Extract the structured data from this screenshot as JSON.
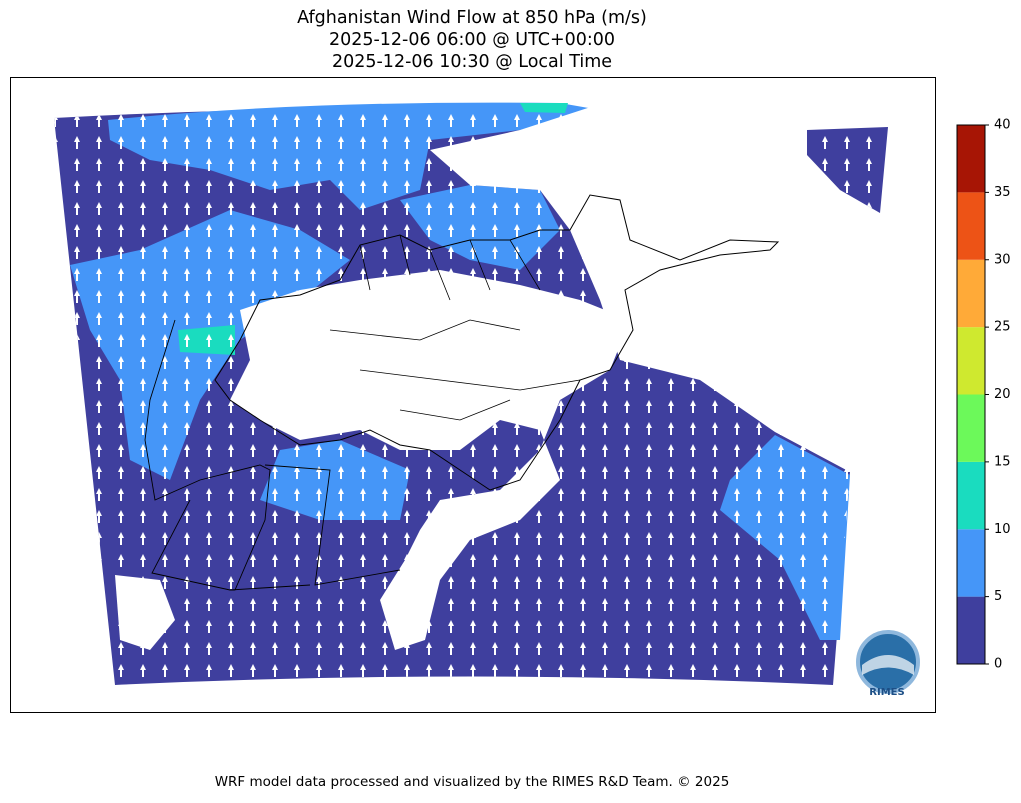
{
  "title": {
    "lines": [
      "Afghanistan Wind Flow at 850 hPa (m/s)",
      "2025-12-06 06:00 @ UTC+00:00",
      "2025-12-06 10:30 @ Local Time"
    ]
  },
  "colorbar": {
    "levels": [
      0,
      5,
      10,
      15,
      20,
      25,
      30,
      35,
      40
    ],
    "colors": [
      "#3f3f9e",
      "#4596f8",
      "#1adcbf",
      "#6cf95a",
      "#cfe92f",
      "#ffaa38",
      "#ed5316",
      "#a71505"
    ]
  },
  "logo": {
    "text": "RIMES"
  },
  "footer": "WRF model data processed and visualized by the RIMES R&D Team. © 2025"
}
